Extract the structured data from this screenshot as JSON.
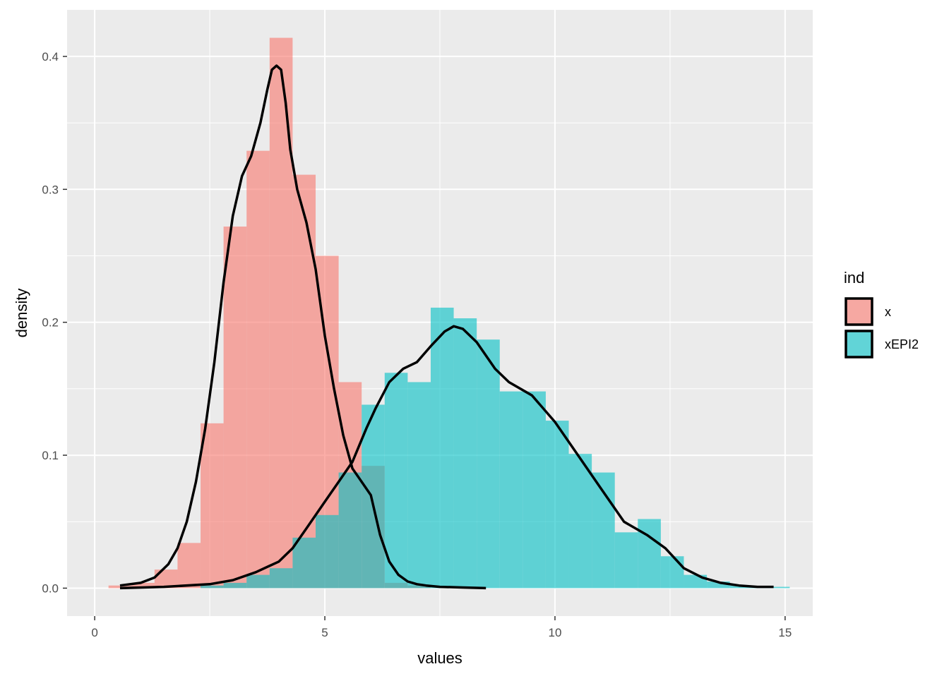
{
  "chart_data": {
    "type": "histogram-density",
    "xlabel": "values",
    "ylabel": "density",
    "xlim": [
      -0.6,
      15.6
    ],
    "ylim": [
      -0.021,
      0.435
    ],
    "x_ticks": [
      0,
      5,
      10,
      15
    ],
    "y_ticks": [
      0.0,
      0.1,
      0.2,
      0.3,
      0.4
    ],
    "y_tick_labels": [
      "0.0",
      "0.1",
      "0.2",
      "0.3",
      "0.4"
    ],
    "grid": true,
    "panel_background": "#EBEBEB",
    "legend": {
      "title": "ind",
      "position": "right",
      "entries": [
        {
          "label": "x",
          "color": "#F8766D"
        },
        {
          "label": "xEPI2",
          "color": "#00BFC4"
        }
      ]
    },
    "series": [
      {
        "name": "x",
        "color": "#F8766D",
        "bins": [
          {
            "x0": 0.3,
            "x1": 0.8,
            "y": 0.002
          },
          {
            "x0": 0.8,
            "x1": 1.3,
            "y": 0.004
          },
          {
            "x0": 1.3,
            "x1": 1.8,
            "y": 0.014
          },
          {
            "x0": 1.8,
            "x1": 2.3,
            "y": 0.034
          },
          {
            "x0": 2.3,
            "x1": 2.8,
            "y": 0.124
          },
          {
            "x0": 2.8,
            "x1": 3.3,
            "y": 0.272
          },
          {
            "x0": 3.3,
            "x1": 3.8,
            "y": 0.329
          },
          {
            "x0": 3.8,
            "x1": 4.3,
            "y": 0.414
          },
          {
            "x0": 4.3,
            "x1": 4.8,
            "y": 0.311
          },
          {
            "x0": 4.8,
            "x1": 5.3,
            "y": 0.25
          },
          {
            "x0": 5.3,
            "x1": 5.8,
            "y": 0.155
          },
          {
            "x0": 5.8,
            "x1": 6.3,
            "y": 0.092
          },
          {
            "x0": 6.3,
            "x1": 6.8,
            "y": 0.004
          },
          {
            "x0": 6.8,
            "x1": 7.3,
            "y": 0.002
          }
        ],
        "density_x": [
          0.55,
          1.0,
          1.3,
          1.6,
          1.8,
          2.0,
          2.2,
          2.4,
          2.6,
          2.8,
          3.0,
          3.2,
          3.4,
          3.6,
          3.75,
          3.85,
          3.95,
          4.05,
          4.15,
          4.25,
          4.4,
          4.6,
          4.8,
          5.0,
          5.2,
          5.4,
          5.6,
          5.8,
          6.0,
          6.2,
          6.4,
          6.6,
          6.8,
          7.0,
          7.2,
          7.5,
          8.0,
          8.5
        ],
        "density_y": [
          0.002,
          0.004,
          0.008,
          0.018,
          0.03,
          0.05,
          0.08,
          0.12,
          0.17,
          0.23,
          0.28,
          0.31,
          0.325,
          0.35,
          0.375,
          0.39,
          0.393,
          0.39,
          0.365,
          0.33,
          0.3,
          0.275,
          0.24,
          0.19,
          0.15,
          0.115,
          0.09,
          0.08,
          0.07,
          0.04,
          0.02,
          0.01,
          0.005,
          0.003,
          0.002,
          0.001,
          0.0005,
          0.0
        ]
      },
      {
        "name": "xEPI2",
        "color": "#00BFC4",
        "bins": [
          {
            "x0": 2.3,
            "x1": 2.8,
            "y": 0.002
          },
          {
            "x0": 2.8,
            "x1": 3.3,
            "y": 0.004
          },
          {
            "x0": 3.3,
            "x1": 3.8,
            "y": 0.01
          },
          {
            "x0": 3.8,
            "x1": 4.3,
            "y": 0.015
          },
          {
            "x0": 4.3,
            "x1": 4.8,
            "y": 0.038
          },
          {
            "x0": 4.8,
            "x1": 5.3,
            "y": 0.055
          },
          {
            "x0": 5.3,
            "x1": 5.8,
            "y": 0.087
          },
          {
            "x0": 5.8,
            "x1": 6.3,
            "y": 0.138
          },
          {
            "x0": 6.3,
            "x1": 6.8,
            "y": 0.162
          },
          {
            "x0": 6.8,
            "x1": 7.3,
            "y": 0.155
          },
          {
            "x0": 7.3,
            "x1": 7.8,
            "y": 0.211
          },
          {
            "x0": 7.8,
            "x1": 8.3,
            "y": 0.203
          },
          {
            "x0": 8.3,
            "x1": 8.8,
            "y": 0.187
          },
          {
            "x0": 8.8,
            "x1": 9.3,
            "y": 0.148
          },
          {
            "x0": 9.3,
            "x1": 9.8,
            "y": 0.148
          },
          {
            "x0": 9.8,
            "x1": 10.3,
            "y": 0.126
          },
          {
            "x0": 10.3,
            "x1": 10.8,
            "y": 0.101
          },
          {
            "x0": 10.8,
            "x1": 11.3,
            "y": 0.087
          },
          {
            "x0": 11.3,
            "x1": 11.8,
            "y": 0.042
          },
          {
            "x0": 11.8,
            "x1": 12.3,
            "y": 0.052
          },
          {
            "x0": 12.3,
            "x1": 12.8,
            "y": 0.024
          },
          {
            "x0": 12.8,
            "x1": 13.3,
            "y": 0.01
          },
          {
            "x0": 13.3,
            "x1": 13.8,
            "y": 0.005
          },
          {
            "x0": 13.8,
            "x1": 14.3,
            "y": 0.002
          },
          {
            "x0": 14.3,
            "x1": 14.8,
            "y": 0.001
          },
          {
            "x0": 14.8,
            "x1": 15.1,
            "y": 0.001
          }
        ],
        "density_x": [
          0.55,
          1.5,
          2.5,
          3.0,
          3.5,
          4.0,
          4.3,
          4.6,
          5.0,
          5.3,
          5.6,
          5.9,
          6.1,
          6.4,
          6.7,
          7.0,
          7.3,
          7.6,
          7.8,
          8.0,
          8.3,
          8.7,
          9.0,
          9.5,
          10.0,
          10.5,
          11.0,
          11.5,
          12.0,
          12.4,
          12.8,
          13.2,
          13.6,
          14.0,
          14.4,
          14.75
        ],
        "density_y": [
          0.0,
          0.001,
          0.003,
          0.006,
          0.012,
          0.02,
          0.03,
          0.045,
          0.065,
          0.08,
          0.095,
          0.12,
          0.135,
          0.155,
          0.165,
          0.17,
          0.182,
          0.193,
          0.197,
          0.195,
          0.185,
          0.165,
          0.155,
          0.145,
          0.125,
          0.1,
          0.075,
          0.05,
          0.04,
          0.03,
          0.015,
          0.008,
          0.004,
          0.002,
          0.001,
          0.001
        ]
      }
    ]
  }
}
